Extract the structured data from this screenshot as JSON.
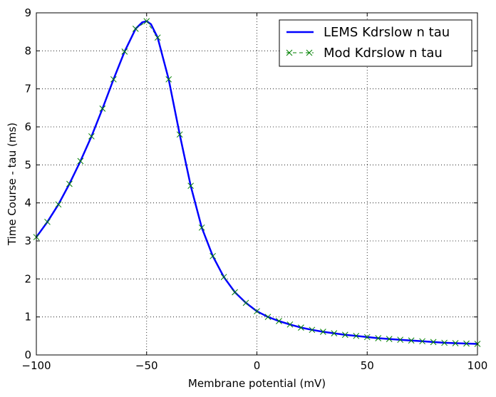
{
  "chart_data": {
    "type": "line",
    "xlabel": "Membrane potential (mV)",
    "ylabel": "Time Course - tau (ms)",
    "xlim": [
      -100,
      100
    ],
    "ylim": [
      0,
      9
    ],
    "xticks": [
      -100,
      -50,
      0,
      50,
      100
    ],
    "yticks": [
      0,
      1,
      2,
      3,
      4,
      5,
      6,
      7,
      8,
      9
    ],
    "xtick_labels": [
      "−100",
      "−50",
      "0",
      "50",
      "100"
    ],
    "ytick_labels": [
      "0",
      "1",
      "2",
      "3",
      "4",
      "5",
      "6",
      "7",
      "8",
      "9"
    ],
    "grid": true,
    "legend_position": "top-right",
    "series": [
      {
        "name": "LEMS Kdrslow n tau",
        "style": "solid-line",
        "color": "#0000ff",
        "x": [
          -100,
          -95,
          -90,
          -85,
          -80,
          -75,
          -70,
          -65,
          -60,
          -55,
          -52,
          -50,
          -48,
          -45,
          -40,
          -35,
          -30,
          -25,
          -20,
          -15,
          -10,
          -5,
          0,
          5,
          10,
          15,
          20,
          25,
          30,
          35,
          40,
          45,
          50,
          55,
          60,
          65,
          70,
          75,
          80,
          85,
          90,
          95,
          100
        ],
        "y": [
          3.1,
          3.5,
          3.96,
          4.5,
          5.1,
          5.75,
          6.48,
          7.25,
          7.98,
          8.58,
          8.75,
          8.78,
          8.7,
          8.35,
          7.25,
          5.8,
          4.45,
          3.35,
          2.6,
          2.05,
          1.65,
          1.37,
          1.15,
          1.0,
          0.89,
          0.8,
          0.72,
          0.66,
          0.61,
          0.57,
          0.53,
          0.5,
          0.47,
          0.44,
          0.42,
          0.4,
          0.38,
          0.36,
          0.34,
          0.32,
          0.31,
          0.3,
          0.29
        ]
      },
      {
        "name": "Mod Kdrslow n tau",
        "style": "dashed-line-x-markers",
        "color": "#008000",
        "x": [
          -100,
          -95,
          -90,
          -85,
          -80,
          -75,
          -70,
          -65,
          -60,
          -55,
          -50,
          -45,
          -40,
          -35,
          -30,
          -25,
          -20,
          -15,
          -10,
          -5,
          0,
          5,
          10,
          15,
          20,
          25,
          30,
          35,
          40,
          45,
          50,
          55,
          60,
          65,
          70,
          75,
          80,
          85,
          90,
          95,
          100
        ],
        "y": [
          3.1,
          3.5,
          3.96,
          4.5,
          5.1,
          5.75,
          6.48,
          7.25,
          7.98,
          8.58,
          8.78,
          8.35,
          7.25,
          5.8,
          4.45,
          3.35,
          2.6,
          2.05,
          1.65,
          1.37,
          1.15,
          1.0,
          0.89,
          0.8,
          0.72,
          0.66,
          0.61,
          0.57,
          0.53,
          0.5,
          0.47,
          0.44,
          0.42,
          0.4,
          0.38,
          0.36,
          0.34,
          0.32,
          0.31,
          0.3,
          0.29
        ]
      }
    ]
  }
}
